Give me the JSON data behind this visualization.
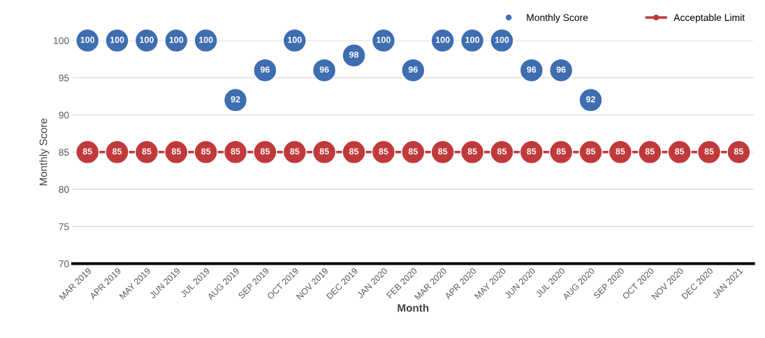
{
  "chart_data": {
    "type": "scatter",
    "xlabel": "Month",
    "ylabel": "Monthly Score",
    "categories": [
      "MAR 2019",
      "APR 2019",
      "MAY 2019",
      "JUN 2019",
      "JUL 2019",
      "AUG 2019",
      "SEP 2019",
      "OCT 2019",
      "NOV 2019",
      "DEC 2019",
      "JAN 2020",
      "FEB 2020",
      "MAR 2020",
      "APR 2020",
      "MAY 2020",
      "JUN 2020",
      "JUL 2020",
      "AUG 2020",
      "SEP 2020",
      "OCT 2020",
      "NOV 2020",
      "DEC 2020",
      "JAN 2021"
    ],
    "series": [
      {
        "name": "Monthly Score",
        "color": "#3e6db0",
        "values": [
          100,
          100,
          100,
          100,
          100,
          92,
          96,
          100,
          96,
          98,
          100,
          96,
          100,
          100,
          100,
          96,
          96,
          92,
          null,
          null,
          null,
          null,
          null
        ]
      },
      {
        "name": "Acceptable Limit",
        "type": "line",
        "color": "#c0393b",
        "values": [
          85,
          85,
          85,
          85,
          85,
          85,
          85,
          85,
          85,
          85,
          85,
          85,
          85,
          85,
          85,
          85,
          85,
          85,
          85,
          85,
          85,
          85,
          85
        ]
      }
    ],
    "ylim": [
      70,
      100
    ],
    "yticks": [
      70,
      75,
      80,
      85,
      90,
      95,
      100
    ],
    "grid": "y",
    "legend": "top right",
    "marker": "circle",
    "data_labels": true
  }
}
